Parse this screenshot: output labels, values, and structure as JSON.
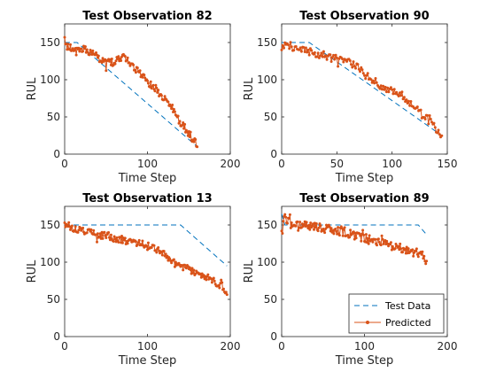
{
  "colors": {
    "test": "#0072BD",
    "pred": "#D95319",
    "axis": "#262626"
  },
  "legend": {
    "placement": "bottom-right of panel 4",
    "entries": [
      "Test Data",
      "Predicted"
    ]
  },
  "chart_data": [
    {
      "type": "line",
      "title": "Test Observation 82",
      "xlabel": "Time Step",
      "ylabel": "RUL",
      "xlim": [
        0,
        200
      ],
      "ylim": [
        0,
        175
      ],
      "xticks": [
        0,
        100,
        200
      ],
      "yticks": [
        0,
        50,
        100,
        150
      ],
      "xtick_labels": [
        "0",
        "100",
        "200"
      ],
      "ytick_labels": [
        "0",
        "50",
        "100",
        "150"
      ],
      "length": 160,
      "test_data": {
        "name": "Test Data",
        "style": "dashed",
        "knots": [
          [
            0,
            150
          ],
          [
            15,
            150
          ],
          [
            160,
            10
          ]
        ]
      },
      "predicted": {
        "name": "Predicted",
        "marker": "point",
        "knots": [
          [
            0,
            157
          ],
          [
            3,
            143
          ],
          [
            20,
            142
          ],
          [
            35,
            135
          ],
          [
            50,
            122
          ],
          [
            60,
            124
          ],
          [
            70,
            130
          ],
          [
            80,
            122
          ],
          [
            90,
            110
          ],
          [
            100,
            97
          ],
          [
            110,
            88
          ],
          [
            120,
            75
          ],
          [
            130,
            63
          ],
          [
            140,
            42
          ],
          [
            150,
            28
          ],
          [
            157,
            17
          ],
          [
            160,
            12
          ]
        ],
        "noise": 5,
        "seed": 82
      }
    },
    {
      "type": "line",
      "title": "Test Observation 90",
      "xlabel": "Time Step",
      "ylabel": "RUL",
      "xlim": [
        0,
        150
      ],
      "ylim": [
        0,
        175
      ],
      "xticks": [
        0,
        50,
        100,
        150
      ],
      "yticks": [
        0,
        50,
        100,
        150
      ],
      "xtick_labels": [
        "0",
        "50",
        "100",
        "150"
      ],
      "ytick_labels": [
        "0",
        "50",
        "100",
        "150"
      ],
      "length": 145,
      "test_data": {
        "name": "Test Data",
        "style": "dashed",
        "knots": [
          [
            0,
            150
          ],
          [
            25,
            150
          ],
          [
            145,
            25
          ]
        ]
      },
      "predicted": {
        "name": "Predicted",
        "marker": "point",
        "knots": [
          [
            0,
            140
          ],
          [
            5,
            148
          ],
          [
            15,
            140
          ],
          [
            25,
            138
          ],
          [
            40,
            130
          ],
          [
            50,
            128
          ],
          [
            60,
            125
          ],
          [
            70,
            116
          ],
          [
            80,
            102
          ],
          [
            90,
            92
          ],
          [
            100,
            85
          ],
          [
            110,
            78
          ],
          [
            120,
            62
          ],
          [
            130,
            52
          ],
          [
            138,
            38
          ],
          [
            145,
            22
          ]
        ],
        "noise": 5,
        "seed": 90
      }
    },
    {
      "type": "line",
      "title": "Test Observation 13",
      "xlabel": "Time Step",
      "ylabel": "RUL",
      "xlim": [
        0,
        200
      ],
      "ylim": [
        0,
        175
      ],
      "xticks": [
        0,
        100,
        200
      ],
      "yticks": [
        0,
        50,
        100,
        150
      ],
      "xtick_labels": [
        "0",
        "100",
        "200"
      ],
      "ytick_labels": [
        "0",
        "50",
        "100",
        "150"
      ],
      "length": 196,
      "test_data": {
        "name": "Test Data",
        "style": "dashed",
        "knots": [
          [
            0,
            150
          ],
          [
            140,
            150
          ],
          [
            196,
            95
          ]
        ]
      },
      "predicted": {
        "name": "Predicted",
        "marker": "point",
        "knots": [
          [
            0,
            153
          ],
          [
            10,
            145
          ],
          [
            30,
            140
          ],
          [
            50,
            135
          ],
          [
            70,
            130
          ],
          [
            90,
            125
          ],
          [
            110,
            118
          ],
          [
            120,
            110
          ],
          [
            130,
            100
          ],
          [
            140,
            95
          ],
          [
            150,
            90
          ],
          [
            160,
            83
          ],
          [
            170,
            80
          ],
          [
            180,
            75
          ],
          [
            190,
            68
          ],
          [
            196,
            52
          ]
        ],
        "noise": 5,
        "seed": 13
      }
    },
    {
      "type": "line",
      "title": "Test Observation 89",
      "xlabel": "Time Step",
      "ylabel": "RUL",
      "xlim": [
        0,
        200
      ],
      "ylim": [
        0,
        175
      ],
      "xticks": [
        0,
        100,
        200
      ],
      "yticks": [
        0,
        50,
        100,
        150
      ],
      "xtick_labels": [
        "0",
        "100",
        "200"
      ],
      "ytick_labels": [
        "0",
        "50",
        "100",
        "150"
      ],
      "length": 175,
      "test_data": {
        "name": "Test Data",
        "style": "dashed",
        "knots": [
          [
            0,
            165
          ],
          [
            4,
            150
          ],
          [
            165,
            150
          ],
          [
            175,
            137
          ]
        ]
      },
      "predicted": {
        "name": "Predicted",
        "marker": "point",
        "knots": [
          [
            0,
            142
          ],
          [
            3,
            160
          ],
          [
            10,
            152
          ],
          [
            30,
            150
          ],
          [
            50,
            146
          ],
          [
            70,
            143
          ],
          [
            90,
            135
          ],
          [
            110,
            130
          ],
          [
            130,
            123
          ],
          [
            140,
            120
          ],
          [
            150,
            117
          ],
          [
            160,
            114
          ],
          [
            170,
            108
          ],
          [
            175,
            98
          ]
        ],
        "noise": 6,
        "seed": 89
      }
    }
  ]
}
